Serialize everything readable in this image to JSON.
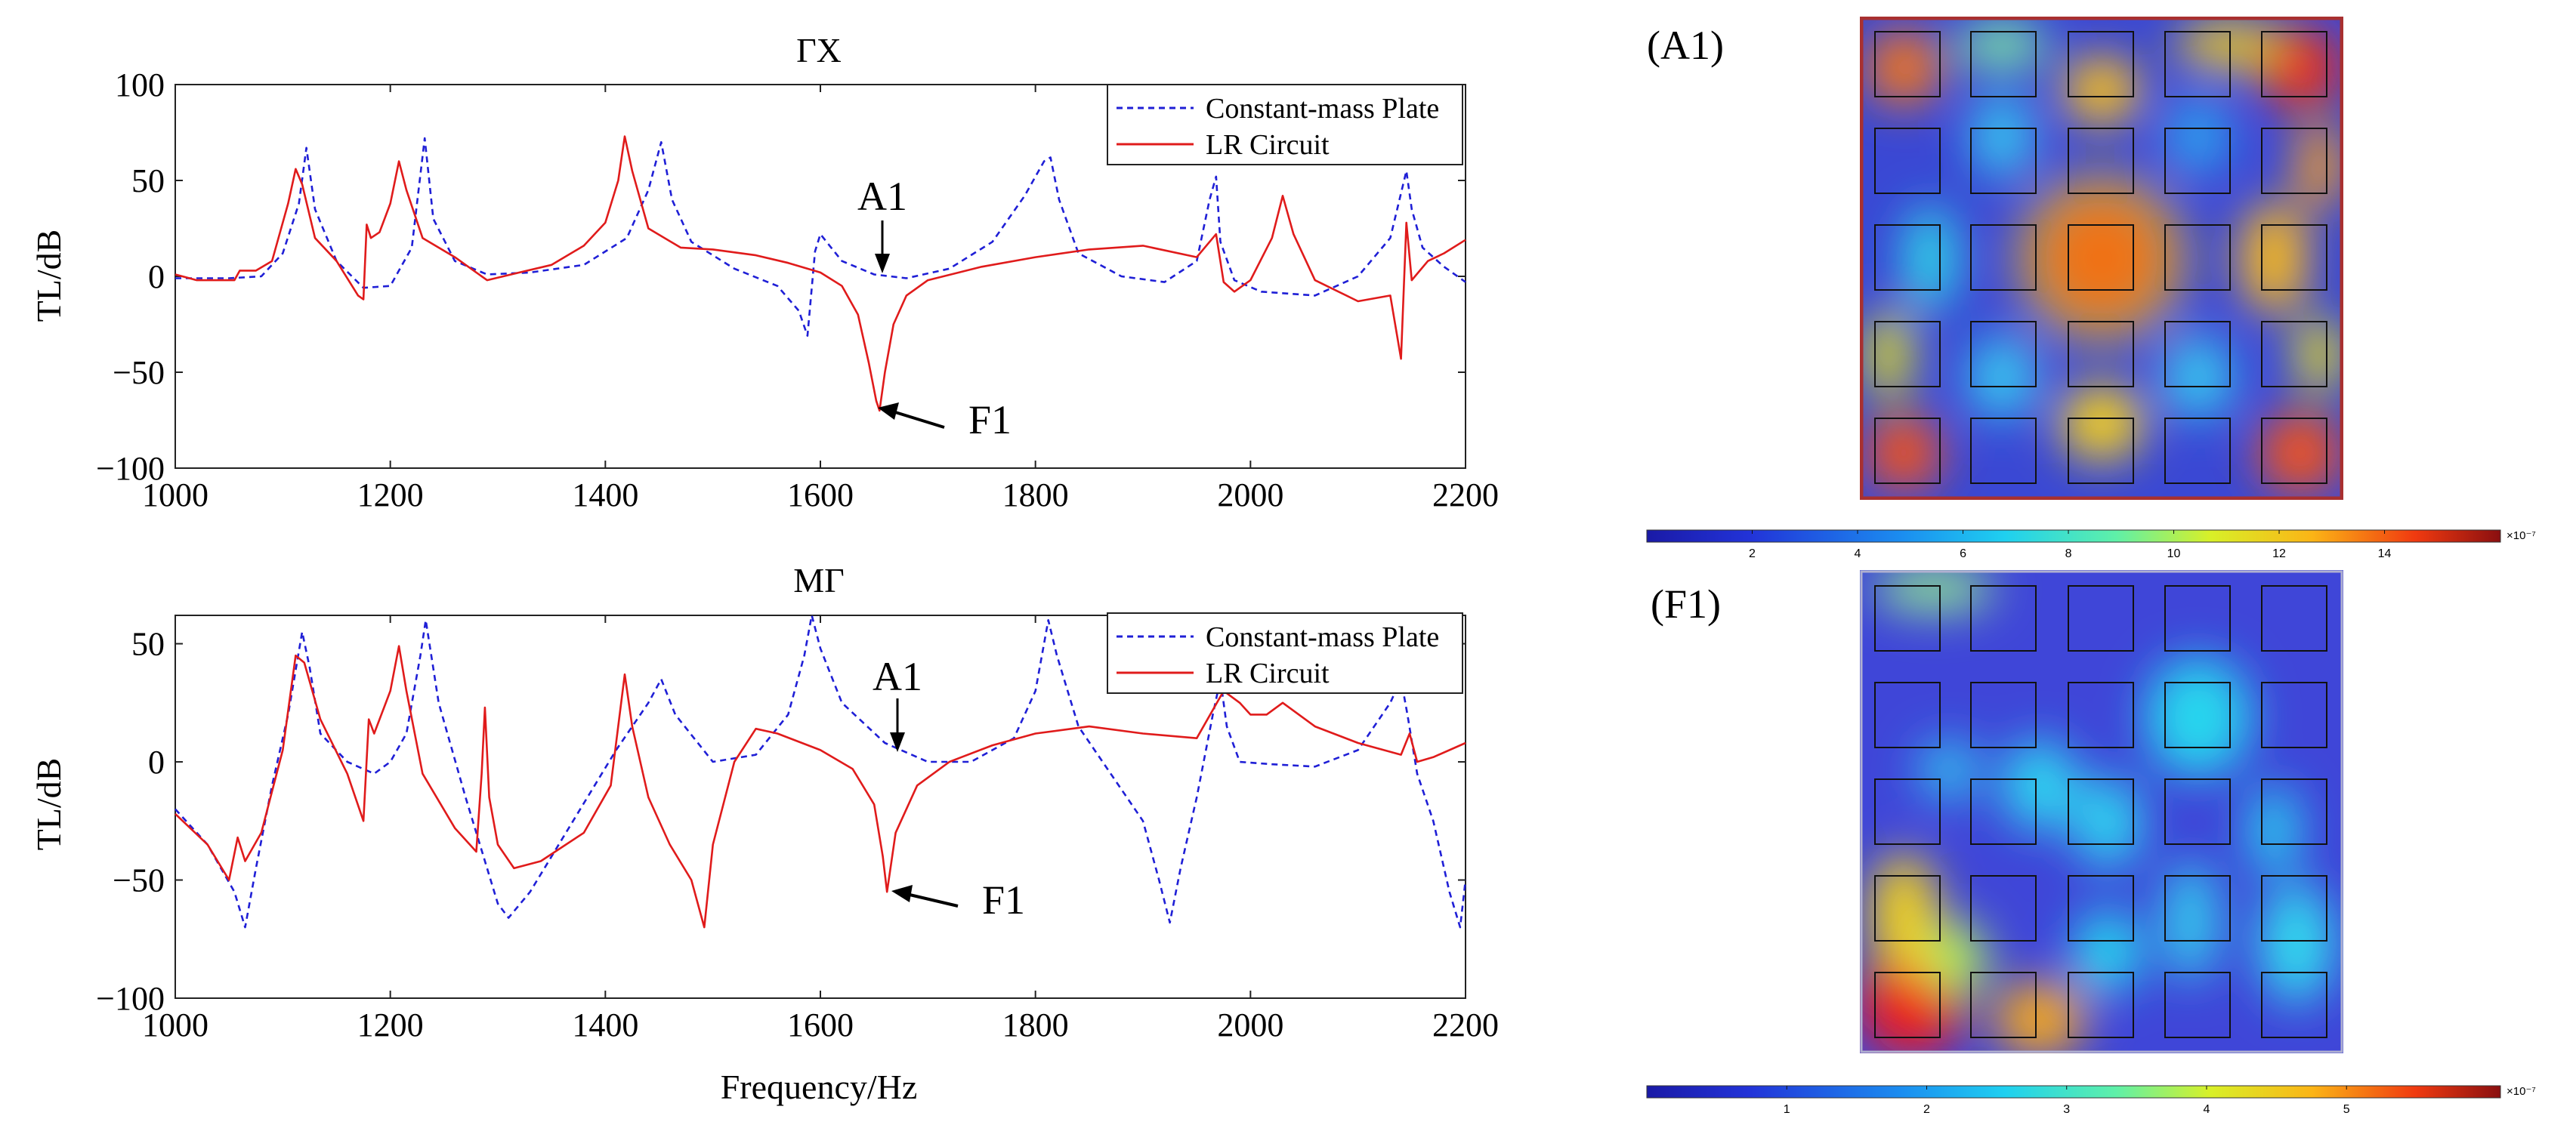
{
  "chart_data": [
    {
      "type": "line",
      "title": "ΓX",
      "xlabel": "",
      "ylabel": "TL/dB",
      "xlim": [
        1000,
        2200
      ],
      "ylim": [
        -100,
        100
      ],
      "xticks": [
        "1000",
        "1200",
        "1400",
        "1600",
        "1800",
        "2000",
        "2200"
      ],
      "yticks": [
        "100",
        "50",
        "0",
        "−50",
        "−100"
      ],
      "legend": [
        "Constant-mass Plate",
        "LR Circuit"
      ],
      "legend_position": "top-right",
      "annotations": [
        {
          "text": "A1",
          "x": 1660,
          "y": 0
        },
        {
          "text": "F1",
          "x": 1655,
          "y": -70
        }
      ],
      "series": [
        {
          "name": "Constant-mass Plate",
          "color": "#1f1fd6",
          "dash": true,
          "x": [
            1000,
            1050,
            1080,
            1100,
            1115,
            1122,
            1130,
            1150,
            1175,
            1200,
            1220,
            1232,
            1240,
            1260,
            1290,
            1330,
            1380,
            1420,
            1440,
            1452,
            1462,
            1480,
            1520,
            1560,
            1580,
            1588,
            1595,
            1600,
            1620,
            1650,
            1680,
            1720,
            1760,
            1790,
            1808,
            1814,
            1822,
            1840,
            1880,
            1920,
            1950,
            1962,
            1968,
            1972,
            1985,
            2010,
            2060,
            2100,
            2130,
            2145,
            2150,
            2160,
            2180,
            2200
          ],
          "y": [
            -1,
            -1,
            0,
            12,
            38,
            67,
            35,
            8,
            -6,
            -5,
            15,
            72,
            30,
            8,
            1,
            2,
            6,
            20,
            45,
            70,
            40,
            18,
            4,
            -5,
            -18,
            -31,
            13,
            22,
            8,
            1,
            -1,
            4,
            18,
            42,
            60,
            62,
            40,
            12,
            0,
            -3,
            8,
            40,
            52,
            18,
            -2,
            -8,
            -10,
            0,
            20,
            55,
            35,
            15,
            5,
            -3
          ]
        },
        {
          "name": "LR Circuit",
          "color": "#e01b1b",
          "dash": false,
          "x": [
            1000,
            1020,
            1055,
            1060,
            1075,
            1090,
            1105,
            1112,
            1118,
            1130,
            1150,
            1170,
            1175,
            1178,
            1182,
            1190,
            1200,
            1208,
            1215,
            1230,
            1260,
            1290,
            1320,
            1350,
            1380,
            1400,
            1412,
            1418,
            1425,
            1440,
            1470,
            1500,
            1540,
            1570,
            1600,
            1620,
            1635,
            1645,
            1652,
            1655,
            1660,
            1668,
            1680,
            1700,
            1750,
            1800,
            1850,
            1900,
            1950,
            1968,
            1975,
            1985,
            2000,
            2020,
            2030,
            2040,
            2060,
            2100,
            2130,
            2140,
            2145,
            2150,
            2165,
            2180,
            2200
          ],
          "y": [
            1,
            -2,
            -2,
            3,
            3,
            8,
            38,
            56,
            48,
            20,
            8,
            -10,
            -12,
            27,
            20,
            23,
            38,
            60,
            45,
            20,
            10,
            -2,
            2,
            6,
            16,
            28,
            50,
            73,
            55,
            25,
            15,
            14,
            11,
            7,
            2,
            -5,
            -20,
            -45,
            -65,
            -70,
            -50,
            -25,
            -10,
            -2,
            5,
            10,
            14,
            16,
            10,
            22,
            -3,
            -8,
            -2,
            20,
            42,
            22,
            -2,
            -13,
            -10,
            -43,
            28,
            -2,
            8,
            12,
            19
          ]
        }
      ]
    },
    {
      "type": "line",
      "title": "MΓ",
      "xlabel": "Frequency/Hz",
      "ylabel": "TL/dB",
      "xlim": [
        1000,
        2200
      ],
      "ylim": [
        -100,
        62
      ],
      "xticks": [
        "1000",
        "1200",
        "1400",
        "1600",
        "1800",
        "2000",
        "2200"
      ],
      "yticks": [
        "50",
        "0",
        "−50",
        "−100"
      ],
      "legend": [
        "Constant-mass Plate",
        "LR Circuit"
      ],
      "legend_position": "top-right",
      "annotations": [
        {
          "text": "A1",
          "x": 1670,
          "y": 3
        },
        {
          "text": "F1",
          "x": 1665,
          "y": -55
        }
      ],
      "series": [
        {
          "name": "Constant-mass Plate",
          "color": "#1f1fd6",
          "dash": true,
          "x": [
            1000,
            1030,
            1055,
            1065,
            1075,
            1090,
            1105,
            1118,
            1125,
            1135,
            1160,
            1185,
            1200,
            1215,
            1228,
            1233,
            1245,
            1270,
            1300,
            1310,
            1330,
            1370,
            1410,
            1440,
            1452,
            1465,
            1500,
            1540,
            1570,
            1585,
            1592,
            1600,
            1620,
            1660,
            1700,
            1740,
            1780,
            1800,
            1812,
            1820,
            1840,
            1870,
            1900,
            1915,
            1925,
            1935,
            1950,
            1965,
            1972,
            1978,
            1990,
            2020,
            2060,
            2100,
            2130,
            2140,
            2146,
            2155,
            2170,
            2185,
            2195,
            2200
          ],
          "y": [
            -20,
            -35,
            -55,
            -70,
            -45,
            -10,
            20,
            55,
            40,
            12,
            0,
            -5,
            0,
            12,
            45,
            60,
            25,
            -15,
            -60,
            -66,
            -55,
            -25,
            5,
            25,
            35,
            20,
            0,
            3,
            20,
            45,
            62,
            48,
            25,
            8,
            0,
            0,
            10,
            30,
            60,
            45,
            15,
            -5,
            -25,
            -50,
            -68,
            -45,
            -15,
            20,
            35,
            15,
            0,
            -1,
            -2,
            5,
            25,
            35,
            20,
            -5,
            -25,
            -55,
            -70,
            -50
          ]
        },
        {
          "name": "LR Circuit",
          "color": "#e01b1b",
          "dash": false,
          "x": [
            1000,
            1030,
            1050,
            1058,
            1065,
            1080,
            1100,
            1112,
            1120,
            1135,
            1160,
            1175,
            1180,
            1185,
            1200,
            1208,
            1215,
            1230,
            1260,
            1280,
            1285,
            1288,
            1292,
            1300,
            1315,
            1340,
            1380,
            1405,
            1418,
            1425,
            1440,
            1460,
            1480,
            1492,
            1500,
            1520,
            1540,
            1560,
            1600,
            1630,
            1650,
            1658,
            1662,
            1670,
            1690,
            1720,
            1760,
            1800,
            1850,
            1900,
            1950,
            1975,
            1990,
            2000,
            2015,
            2030,
            2060,
            2100,
            2140,
            2148,
            2155,
            2170,
            2200
          ],
          "y": [
            -22,
            -35,
            -50,
            -32,
            -42,
            -30,
            5,
            45,
            42,
            18,
            -5,
            -25,
            18,
            12,
            30,
            49,
            30,
            -5,
            -28,
            -38,
            -5,
            23,
            -15,
            -35,
            -45,
            -42,
            -30,
            -10,
            37,
            15,
            -15,
            -35,
            -50,
            -70,
            -35,
            0,
            14,
            12,
            5,
            -3,
            -18,
            -40,
            -55,
            -30,
            -10,
            0,
            7,
            12,
            15,
            12,
            10,
            30,
            25,
            20,
            20,
            25,
            15,
            8,
            3,
            12,
            0,
            2,
            8
          ]
        }
      ]
    }
  ],
  "fields": [
    {
      "label": "(A1)",
      "colorbar_ticks": [
        "2",
        "4",
        "6",
        "8",
        "10",
        "12",
        "14"
      ],
      "colorbar_exponent": "×10⁻⁷",
      "base_color": "#3a48d4",
      "border_color": "#a83030"
    },
    {
      "label": "(F1)",
      "colorbar_ticks": [
        "1",
        "2",
        "3",
        "4",
        "5"
      ],
      "colorbar_exponent": "×10⁻⁷",
      "base_color": "#3f46d8",
      "border_color": "#b0b0d0"
    }
  ]
}
